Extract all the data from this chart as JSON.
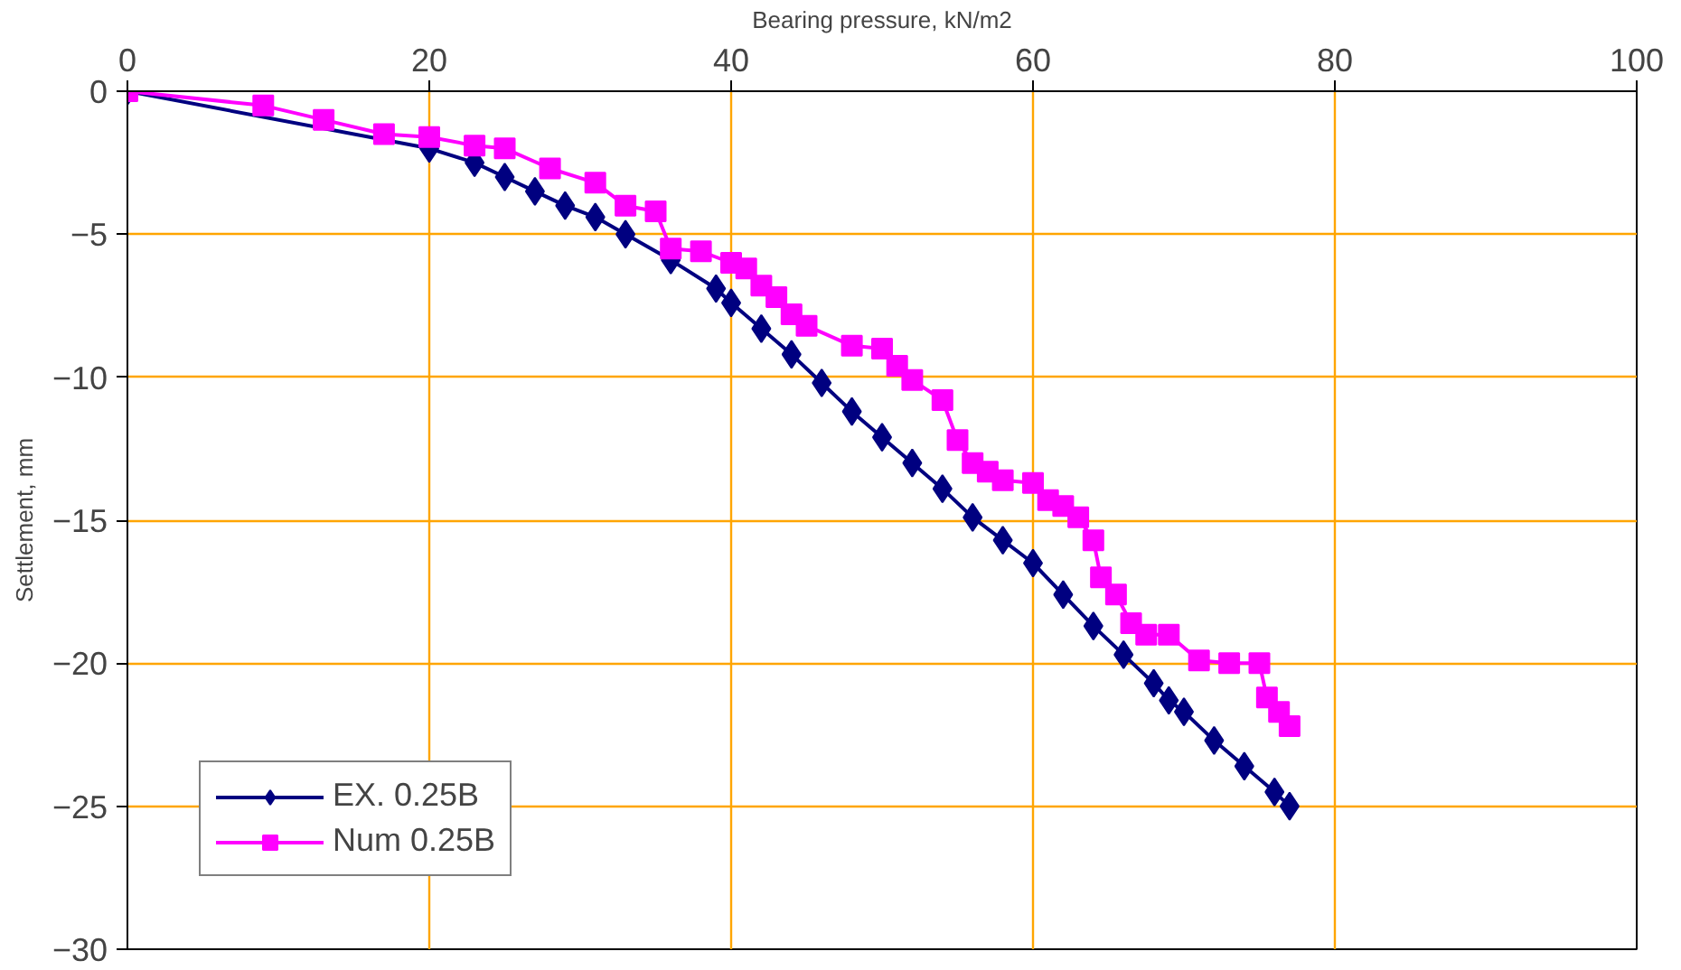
{
  "chart_data": {
    "type": "line",
    "xlabel": "Bearing pressure, kN/m2",
    "ylabel": "Settlement, mm",
    "xlim": [
      0,
      100
    ],
    "xticks": [
      0,
      20,
      40,
      60,
      80,
      100
    ],
    "ylim": [
      -30,
      0
    ],
    "yticks": [
      -30,
      -25,
      -20,
      -15,
      -10,
      -5,
      0
    ],
    "grid": true,
    "legend": "bottom left",
    "series": [
      {
        "name": "EX. 0.25B",
        "color": "#000080",
        "marker": "diamond",
        "x": [
          0,
          20,
          23,
          25,
          27,
          29,
          31,
          33,
          36,
          39,
          40,
          42,
          44,
          46,
          48,
          50,
          52,
          54,
          56,
          58,
          60,
          62,
          64,
          66,
          68,
          69,
          70,
          72,
          74,
          76,
          77
        ],
        "values": [
          0,
          -2,
          -2.5,
          -3,
          -3.5,
          -4,
          -4.4,
          -5,
          -5.9,
          -6.9,
          -7.4,
          -8.3,
          -9.2,
          -10.2,
          -11.2,
          -12.1,
          -13,
          -13.9,
          -14.9,
          -15.7,
          -16.5,
          -17.6,
          -18.7,
          -19.7,
          -20.7,
          -21.3,
          -21.7,
          -22.7,
          -23.6,
          -24.5,
          -25
        ]
      },
      {
        "name": "Num 0.25B",
        "color": "#ff00ff",
        "marker": "square",
        "x": [
          0,
          9,
          13,
          17,
          20,
          23,
          25,
          28,
          31,
          33,
          35,
          36,
          38,
          40,
          41,
          42,
          43,
          44,
          45,
          48,
          50,
          51,
          52,
          54,
          55,
          56,
          57,
          58,
          60,
          61,
          62,
          63,
          64,
          64.5,
          65.5,
          66.5,
          67.5,
          69,
          71,
          73,
          75,
          75.5,
          76.3,
          77
        ],
        "values": [
          0,
          -0.5,
          -1,
          -1.5,
          -1.6,
          -1.9,
          -2,
          -2.7,
          -3.2,
          -4,
          -4.2,
          -5.5,
          -5.6,
          -6,
          -6.2,
          -6.8,
          -7.2,
          -7.8,
          -8.2,
          -8.9,
          -9,
          -9.6,
          -10.1,
          -10.8,
          -12.2,
          -13,
          -13.3,
          -13.6,
          -13.7,
          -14.3,
          -14.5,
          -14.9,
          -15.7,
          -17,
          -17.6,
          -18.6,
          -19,
          -19,
          -19.9,
          -20,
          -20,
          -21.2,
          -21.7,
          -22.2
        ]
      }
    ]
  }
}
